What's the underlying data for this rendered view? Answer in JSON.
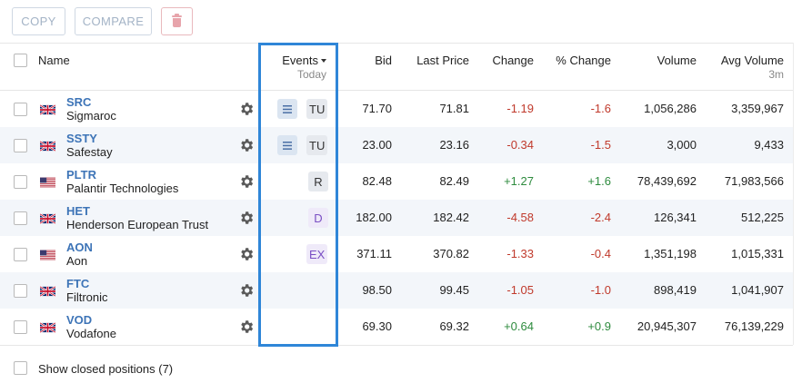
{
  "toolbar": {
    "copy_label": "COPY",
    "compare_label": "COMPARE",
    "delete_icon": "trash-icon"
  },
  "header": {
    "name": "Name",
    "events": "Events",
    "events_sub": "Today",
    "bid": "Bid",
    "last_price": "Last Price",
    "change": "Change",
    "pct_change": "% Change",
    "volume": "Volume",
    "avg_volume": "Avg Volume",
    "avg_volume_sub": "3m"
  },
  "rows": [
    {
      "ticker": "SRC",
      "name": "Sigmaroc",
      "flag": "uk",
      "event_menu": true,
      "event": "TU",
      "event_style": "gray",
      "bid": "71.70",
      "last": "71.81",
      "change": "-1.19",
      "pct": "-1.6",
      "volume": "1,056,286",
      "avg_volume": "3,359,967",
      "dir": "neg"
    },
    {
      "ticker": "SSTY",
      "name": "Safestay",
      "flag": "uk",
      "event_menu": true,
      "event": "TU",
      "event_style": "gray",
      "bid": "23.00",
      "last": "23.16",
      "change": "-0.34",
      "pct": "-1.5",
      "volume": "3,000",
      "avg_volume": "9,433",
      "dir": "neg"
    },
    {
      "ticker": "PLTR",
      "name": "Palantir Technologies",
      "flag": "us",
      "event_menu": false,
      "event": "R",
      "event_style": "gray",
      "bid": "82.48",
      "last": "82.49",
      "change": "+1.27",
      "pct": "+1.6",
      "volume": "78,439,692",
      "avg_volume": "71,983,566",
      "dir": "pos"
    },
    {
      "ticker": "HET",
      "name": "Henderson European Trust",
      "flag": "uk",
      "event_menu": false,
      "event": "D",
      "event_style": "purple",
      "bid": "182.00",
      "last": "182.42",
      "change": "-4.58",
      "pct": "-2.4",
      "volume": "126,341",
      "avg_volume": "512,225",
      "dir": "neg"
    },
    {
      "ticker": "AON",
      "name": "Aon",
      "flag": "us",
      "event_menu": false,
      "event": "EX",
      "event_style": "purple",
      "bid": "371.11",
      "last": "370.82",
      "change": "-1.33",
      "pct": "-0.4",
      "volume": "1,351,198",
      "avg_volume": "1,015,331",
      "dir": "neg"
    },
    {
      "ticker": "FTC",
      "name": "Filtronic",
      "flag": "uk",
      "event_menu": false,
      "event": "",
      "event_style": "none",
      "bid": "98.50",
      "last": "99.45",
      "change": "-1.05",
      "pct": "-1.0",
      "volume": "898,419",
      "avg_volume": "1,041,907",
      "dir": "neg"
    },
    {
      "ticker": "VOD",
      "name": "Vodafone",
      "flag": "uk",
      "event_menu": false,
      "event": "",
      "event_style": "none",
      "bid": "69.30",
      "last": "69.32",
      "change": "+0.64",
      "pct": "+0.9",
      "volume": "20,945,307",
      "avg_volume": "76,139,229",
      "dir": "pos"
    }
  ],
  "footer": {
    "show_closed": "Show closed positions (7)"
  },
  "colors": {
    "ticker": "#3d74b7",
    "negative": "#c0392b",
    "positive": "#2e8b3e",
    "highlight": "#2f86d8"
  }
}
